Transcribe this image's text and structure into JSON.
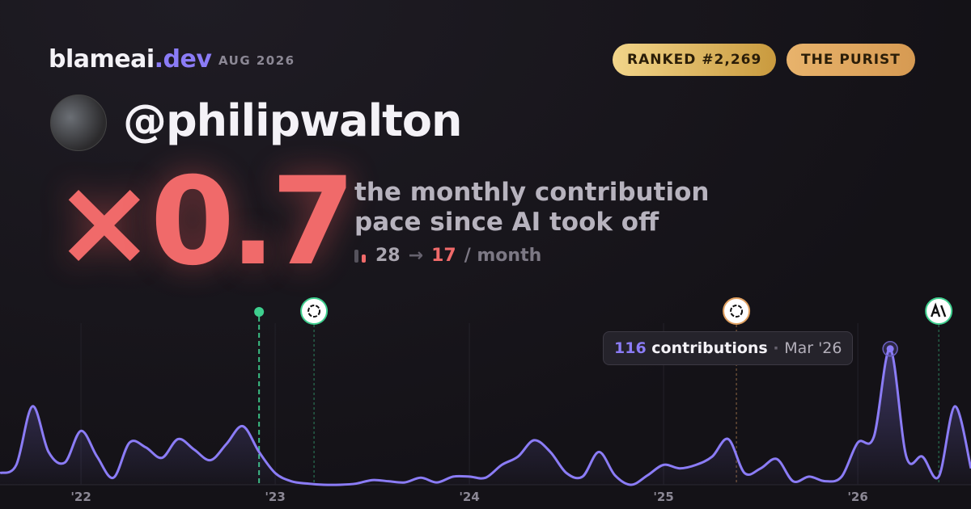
{
  "header": {
    "brand": "blameai",
    "brand_tld": ".dev",
    "date": "AUG 2026",
    "rank_badge": "RANKED #2,269",
    "persona_badge": "THE PURIST"
  },
  "profile": {
    "handle": "@philipwalton"
  },
  "headline": {
    "prefix": "×",
    "multiplier": 0.7,
    "line1": "the monthly contribution",
    "line2": "pace since AI took off",
    "before": 28,
    "arrow": "→",
    "after": 17,
    "unit": "/ month"
  },
  "chart_data": {
    "type": "line",
    "x": [
      2021.583,
      2021.667,
      2021.75,
      2021.833,
      2021.917,
      2022,
      2022.083,
      2022.167,
      2022.25,
      2022.333,
      2022.417,
      2022.5,
      2022.583,
      2022.667,
      2022.75,
      2022.833,
      2022.917,
      2023,
      2023.083,
      2023.167,
      2023.25,
      2023.333,
      2023.417,
      2023.5,
      2023.583,
      2023.667,
      2023.75,
      2023.833,
      2023.917,
      2024,
      2024.083,
      2024.167,
      2024.25,
      2024.333,
      2024.417,
      2024.5,
      2024.583,
      2024.667,
      2024.75,
      2024.833,
      2024.917,
      2025,
      2025.083,
      2025.167,
      2025.25,
      2025.333,
      2025.417,
      2025.5,
      2025.583,
      2025.667,
      2025.75,
      2025.833,
      2025.917,
      2026,
      2026.083,
      2026.167,
      2026.25,
      2026.333,
      2026.417,
      2026.5,
      2026.583
    ],
    "series": [
      {
        "name": "contributions",
        "color": "#8b7cf6",
        "values": [
          10,
          17,
          67,
          28,
          19,
          46,
          24,
          6,
          36,
          32,
          23,
          39,
          30,
          21,
          35,
          50,
          28,
          10,
          3,
          1,
          0,
          0,
          1,
          4,
          3,
          2,
          6,
          2,
          7,
          7,
          6,
          17,
          24,
          38,
          28,
          10,
          7,
          28,
          8,
          0,
          8,
          17,
          14,
          17,
          24,
          39,
          10,
          14,
          22,
          3,
          7,
          3,
          7,
          36,
          41,
          116,
          24,
          24,
          7,
          67,
          14
        ]
      }
    ],
    "xlim": [
      2021.583,
      2026.583
    ],
    "ylim": [
      0,
      120
    ],
    "xticks": [
      {
        "value": 2022,
        "label": "'22"
      },
      {
        "value": 2023,
        "label": "'23"
      },
      {
        "value": 2024,
        "label": "'24"
      },
      {
        "value": 2025,
        "label": "'25"
      },
      {
        "value": 2026,
        "label": "'26"
      }
    ],
    "grid": true,
    "events": [
      {
        "x": 2022.917,
        "color": "#3ecf8e"
      },
      {
        "x": 2023.2,
        "color": "#3ecf8e"
      },
      {
        "x": 2025.375,
        "color": "#e0a060"
      },
      {
        "x": 2026.417,
        "color": "#3ecf8e"
      }
    ],
    "tooltip": {
      "index": 55,
      "label": "contributions",
      "date": "Mar '26"
    }
  }
}
